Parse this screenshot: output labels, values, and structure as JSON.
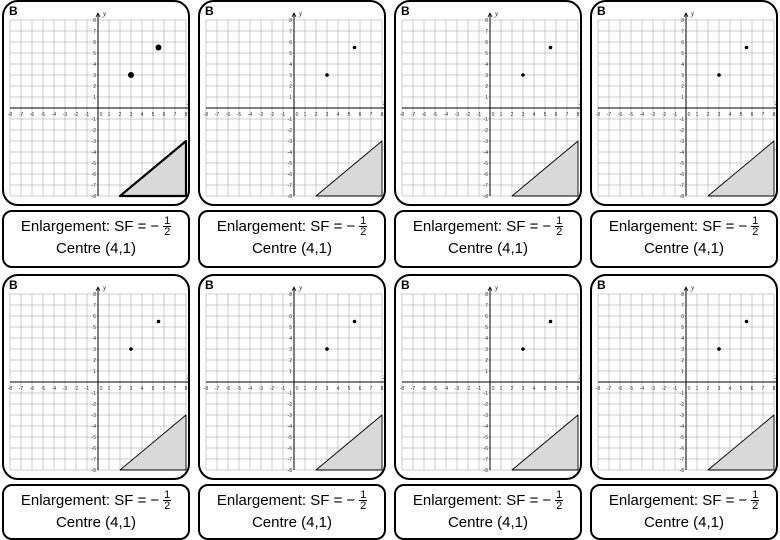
{
  "cards": [
    {
      "label": "B",
      "instruction": {
        "prefix": "Enlargement: SF =",
        "sign": "−",
        "numerator": "1",
        "denominator": "2",
        "centre": "Centre (4,1)"
      }
    },
    {
      "label": "B",
      "instruction": {
        "prefix": "Enlargement: SF =",
        "sign": "−",
        "numerator": "1",
        "denominator": "2",
        "centre": "Centre (4,1)"
      }
    },
    {
      "label": "B",
      "instruction": {
        "prefix": "Enlargement: SF =",
        "sign": "−",
        "numerator": "1",
        "denominator": "2",
        "centre": "Centre (4,1)"
      }
    },
    {
      "label": "B",
      "instruction": {
        "prefix": "Enlargement: SF =",
        "sign": "−",
        "numerator": "1",
        "denominator": "2",
        "centre": "Centre (4,1)"
      }
    },
    {
      "label": "B",
      "instruction": {
        "prefix": "Enlargement: SF =",
        "sign": "−",
        "numerator": "1",
        "denominator": "2",
        "centre": "Centre (4,1)"
      }
    },
    {
      "label": "B",
      "instruction": {
        "prefix": "Enlargement: SF =",
        "sign": "−",
        "numerator": "1",
        "denominator": "2",
        "centre": "Centre (4,1)"
      }
    },
    {
      "label": "B",
      "instruction": {
        "prefix": "Enlargement: SF =",
        "sign": "−",
        "numerator": "1",
        "denominator": "2",
        "centre": "Centre (4,1)"
      }
    },
    {
      "label": "B",
      "instruction": {
        "prefix": "Enlargement: SF =",
        "sign": "−",
        "numerator": "1",
        "denominator": "2",
        "centre": "Centre (4,1)"
      }
    }
  ],
  "grid": {
    "x_range": [
      -8,
      8
    ],
    "y_range": [
      -8,
      8
    ],
    "x_label": "x",
    "y_label": "y",
    "points": [
      {
        "x": 3,
        "y": 3
      },
      {
        "x": 5.5,
        "y": 5.5
      }
    ],
    "triangle": [
      [
        2,
        -8
      ],
      [
        8,
        -8
      ],
      [
        8,
        -3
      ]
    ],
    "triangle_fill": "#d9d9d9"
  }
}
